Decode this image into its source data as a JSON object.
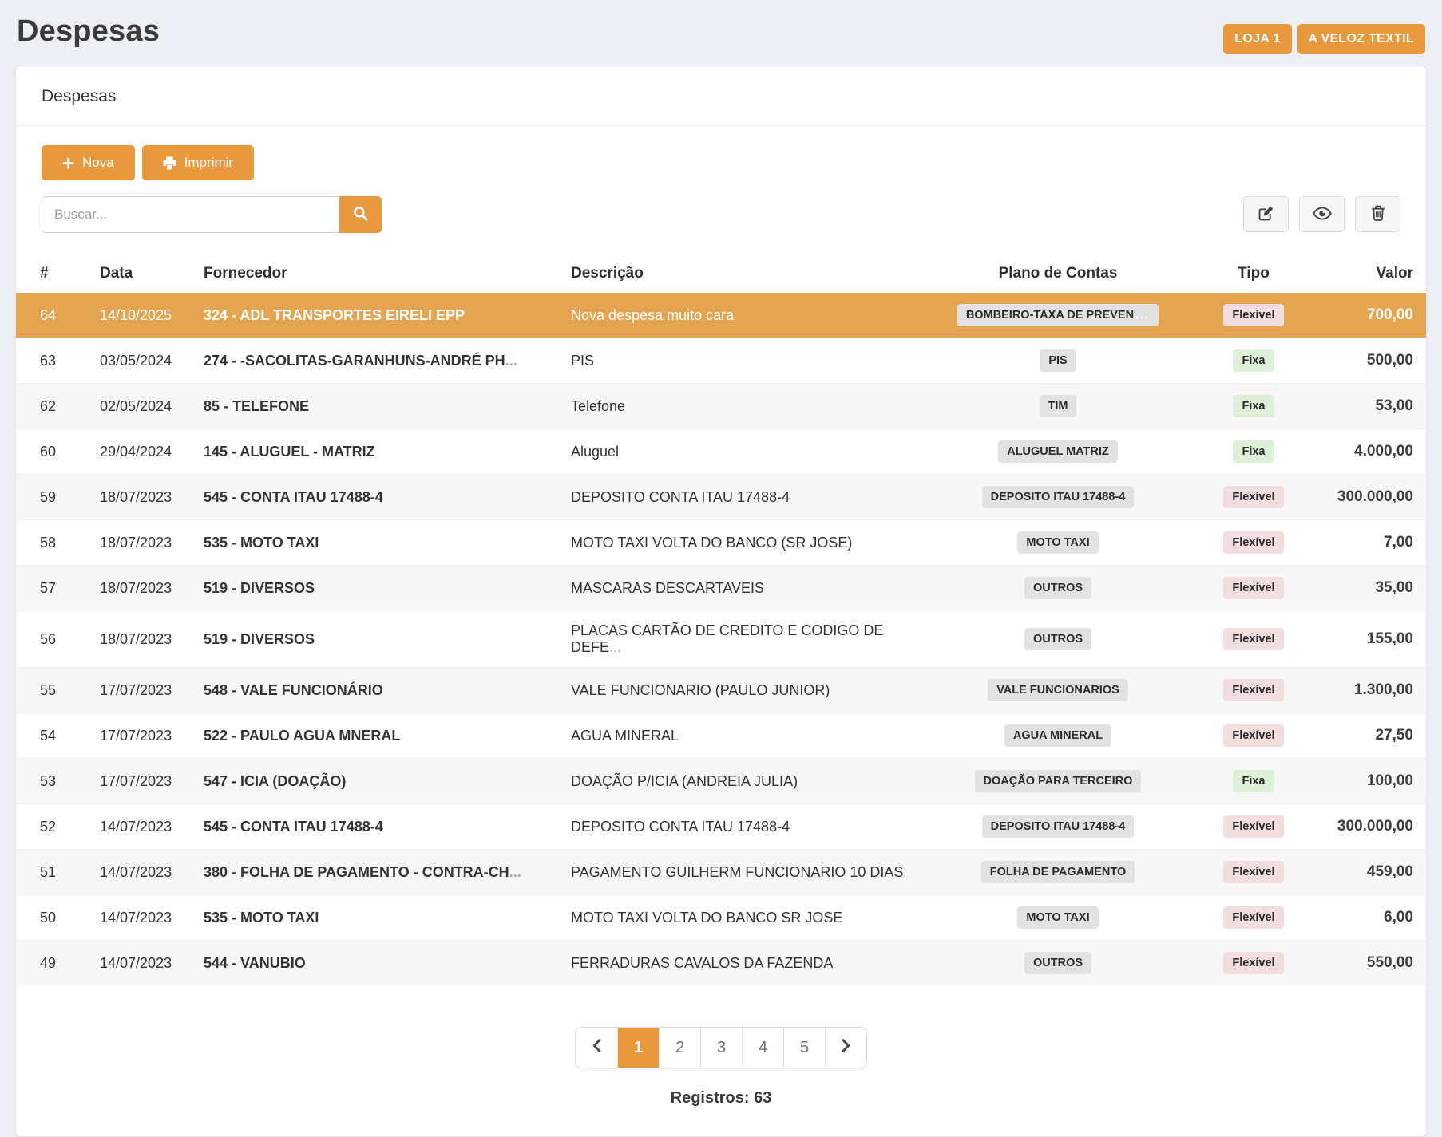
{
  "page": {
    "title": "Despesas"
  },
  "header": {
    "badges": [
      "LOJA 1",
      "A VELOZ TEXTIL"
    ]
  },
  "card": {
    "title": "Despesas"
  },
  "toolbar": {
    "nova_label": "Nova",
    "imprimir_label": "Imprimir"
  },
  "search": {
    "placeholder": "Buscar...",
    "value": ""
  },
  "icons": {
    "plus-icon": "+",
    "printer-icon": "⎙",
    "search-icon": "🔍",
    "edit-icon": "✎",
    "eye-icon": "👁",
    "trash-icon": "🗑",
    "chevron-left-icon": "❮",
    "chevron-right-icon": "❯"
  },
  "colors": {
    "accent_orange": "#e8993e",
    "selected_row": "#e5a44f",
    "plan_badge_bg": "#e2e2e2",
    "type_styles": {
      "Fixa": "#dff0d8",
      "Flexível": "#f2dede"
    }
  },
  "table": {
    "headers": [
      "#",
      "Data",
      "Fornecedor",
      "Descrição",
      "Plano de Contas",
      "Tipo",
      "Valor"
    ],
    "rows": [
      {
        "id": "64",
        "date": "14/10/2025",
        "supplier": "324 - ADL TRANSPORTES EIRELI EPP",
        "description": "Nova despesa muito cara",
        "plan": "BOMBEIRO-TAXA DE PREVEN",
        "plan_truncated": true,
        "type": "Flexível",
        "value": "700,00",
        "selected": true
      },
      {
        "id": "63",
        "date": "03/05/2024",
        "supplier": "274 - -SACOLITAS-GARANHUNS-ANDRÉ PH",
        "supplier_truncated": true,
        "description": "PIS",
        "plan": "PIS",
        "type": "Fixa",
        "value": "500,00"
      },
      {
        "id": "62",
        "date": "02/05/2024",
        "supplier": "85 - TELEFONE",
        "description": "Telefone",
        "plan": "TIM",
        "type": "Fixa",
        "value": "53,00"
      },
      {
        "id": "60",
        "date": "29/04/2024",
        "supplier": "145 - ALUGUEL - MATRIZ",
        "description": "Aluguel",
        "plan": "ALUGUEL MATRIZ",
        "type": "Fixa",
        "value": "4.000,00"
      },
      {
        "id": "59",
        "date": "18/07/2023",
        "supplier": "545 - CONTA ITAU 17488-4",
        "description": "DEPOSITO CONTA ITAU 17488-4",
        "plan": "DEPOSITO ITAU 17488-4",
        "type": "Flexível",
        "value": "300.000,00"
      },
      {
        "id": "58",
        "date": "18/07/2023",
        "supplier": "535 - MOTO TAXI",
        "description": "MOTO TAXI VOLTA DO BANCO (SR JOSE)",
        "plan": "MOTO TAXI",
        "type": "Flexível",
        "value": "7,00"
      },
      {
        "id": "57",
        "date": "18/07/2023",
        "supplier": "519 - DIVERSOS",
        "description": "MASCARAS DESCARTAVEIS",
        "plan": "OUTROS",
        "type": "Flexível",
        "value": "35,00"
      },
      {
        "id": "56",
        "date": "18/07/2023",
        "supplier": "519 - DIVERSOS",
        "description": "PLACAS CARTÃO DE CREDITO E CODIGO DE DEFE",
        "description_truncated": true,
        "plan": "OUTROS",
        "type": "Flexível",
        "value": "155,00"
      },
      {
        "id": "55",
        "date": "17/07/2023",
        "supplier": "548 - VALE FUNCIONÁRIO",
        "description": "VALE FUNCIONARIO (PAULO JUNIOR)",
        "plan": "VALE FUNCIONARIOS",
        "type": "Flexível",
        "value": "1.300,00"
      },
      {
        "id": "54",
        "date": "17/07/2023",
        "supplier": "522 - PAULO AGUA MNERAL",
        "description": "AGUA MINERAL",
        "plan": "AGUA MINERAL",
        "type": "Flexível",
        "value": "27,50"
      },
      {
        "id": "53",
        "date": "17/07/2023",
        "supplier": "547 - ICIA (DOAÇÃO)",
        "description": "DOAÇÃO P/ICIA (ANDREIA JULIA)",
        "plan": "DOAÇÃO PARA TERCEIRO",
        "type": "Fixa",
        "value": "100,00"
      },
      {
        "id": "52",
        "date": "14/07/2023",
        "supplier": "545 - CONTA ITAU 17488-4",
        "description": "DEPOSITO CONTA ITAU 17488-4",
        "plan": "DEPOSITO ITAU 17488-4",
        "type": "Flexível",
        "value": "300.000,00"
      },
      {
        "id": "51",
        "date": "14/07/2023",
        "supplier": "380 - FOLHA DE PAGAMENTO - CONTRA-CH",
        "supplier_truncated": true,
        "description": "PAGAMENTO GUILHERM FUNCIONARIO 10 DIAS",
        "plan": "FOLHA DE PAGAMENTO",
        "type": "Flexível",
        "value": "459,00"
      },
      {
        "id": "50",
        "date": "14/07/2023",
        "supplier": "535 - MOTO TAXI",
        "description": "MOTO TAXI VOLTA DO BANCO SR JOSE",
        "plan": "MOTO TAXI",
        "type": "Flexível",
        "value": "6,00"
      },
      {
        "id": "49",
        "date": "14/07/2023",
        "supplier": "544 - VANUBIO",
        "description": "FERRADURAS CAVALOS DA FAZENDA",
        "plan": "OUTROS",
        "type": "Flexível",
        "value": "550,00"
      }
    ]
  },
  "pagination": {
    "prev": "‹",
    "next": "›",
    "pages": [
      "1",
      "2",
      "3",
      "4",
      "5"
    ],
    "active": "1"
  },
  "footer": {
    "registros": "Registros: 63"
  }
}
